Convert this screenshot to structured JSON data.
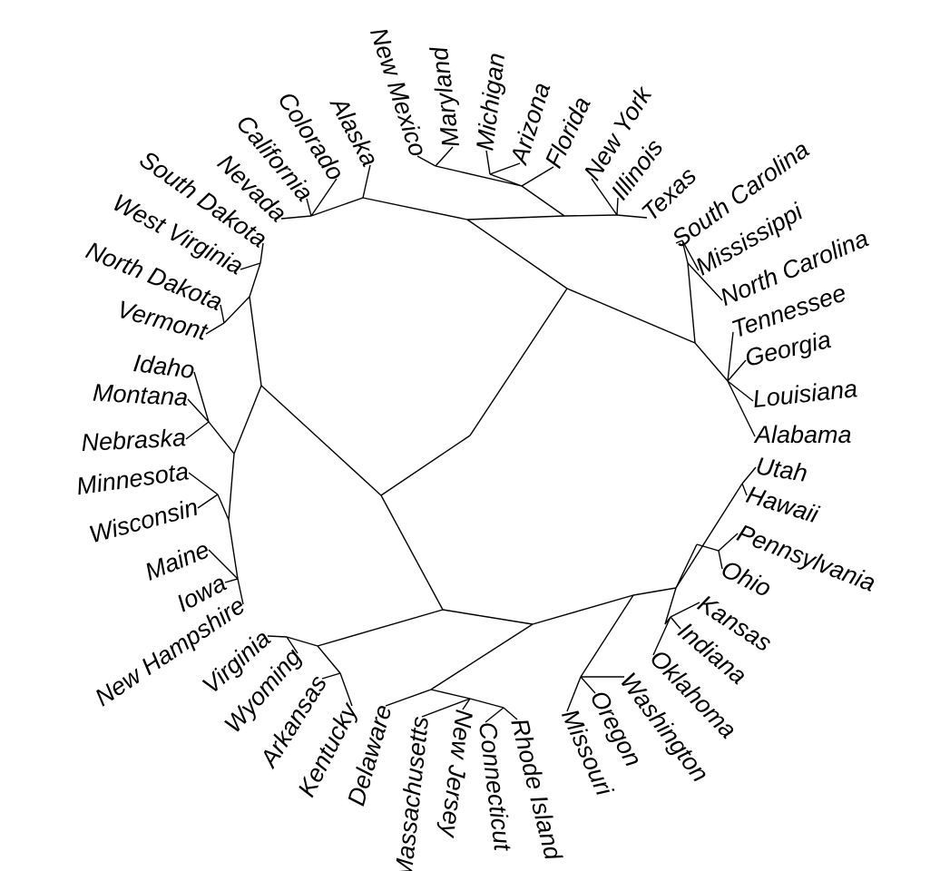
{
  "diagram": {
    "type": "unrooted-dendrogram",
    "leaves": [
      "Alabama",
      "Louisiana",
      "Georgia",
      "Tennessee",
      "North Carolina",
      "Mississippi",
      "South Carolina",
      "Texas",
      "Illinois",
      "New York",
      "Florida",
      "Arizona",
      "Michigan",
      "Maryland",
      "New Mexico",
      "Alaska",
      "Colorado",
      "California",
      "Nevada",
      "South Dakota",
      "West Virginia",
      "North Dakota",
      "Vermont",
      "Idaho",
      "Montana",
      "Nebraska",
      "Minnesota",
      "Wisconsin",
      "Maine",
      "Iowa",
      "New Hampshire",
      "Virginia",
      "Wyoming",
      "Arkansas",
      "Kentucky",
      "Delaware",
      "Massachusetts",
      "New Jersey",
      "Connecticut",
      "Rhode Island",
      "Missouri",
      "Oregon",
      "Washington",
      "Oklahoma",
      "Indiana",
      "Kansas",
      "Ohio",
      "Pennsylvania",
      "Hawaii",
      "Utah"
    ],
    "colors": {
      "line": "#000000",
      "text": "#000000",
      "background": "#ffffff"
    }
  }
}
